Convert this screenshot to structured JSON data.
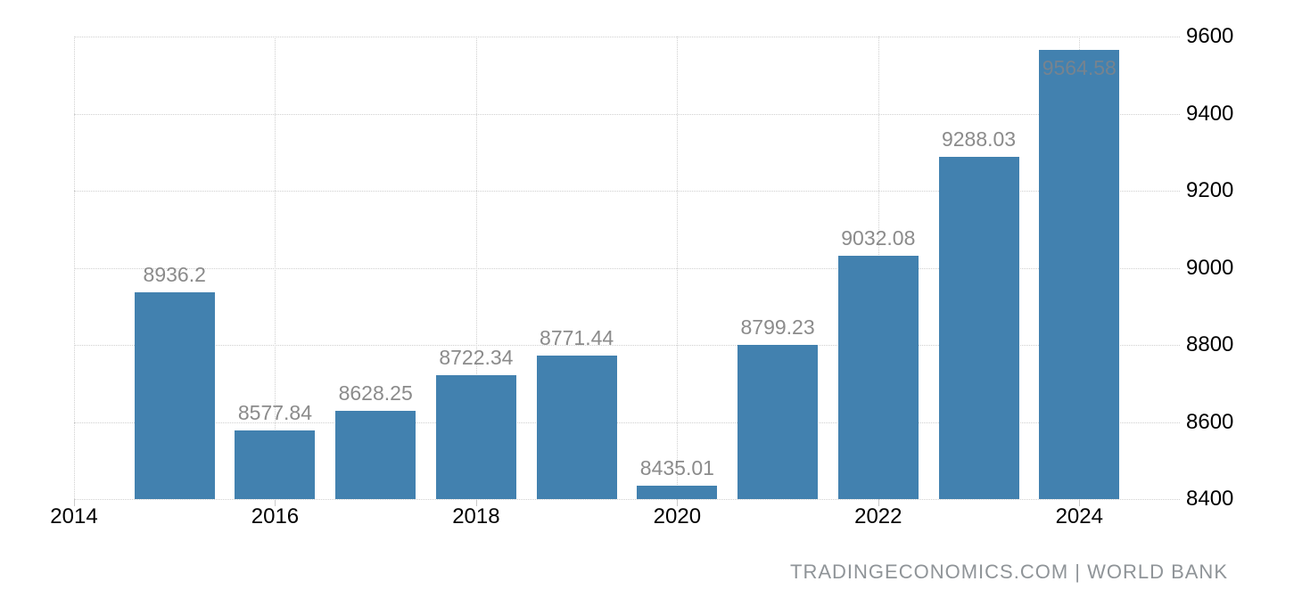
{
  "chart_data": {
    "type": "bar",
    "title": "",
    "xlabel": "",
    "ylabel": "",
    "categories": [
      2015,
      2016,
      2017,
      2018,
      2019,
      2020,
      2021,
      2022,
      2023,
      2024
    ],
    "values": [
      8936.2,
      8577.84,
      8628.25,
      8722.34,
      8771.44,
      8435.01,
      8799.23,
      9032.08,
      9288.03,
      9564.58
    ],
    "bar_labels": [
      "8936.2",
      "8577.84",
      "8628.25",
      "8722.34",
      "8771.44",
      "8435.01",
      "8799.23",
      "9032.08",
      "9288.03",
      "9564.58"
    ],
    "xlim": [
      2014,
      2025
    ],
    "ylim": [
      8400,
      9600
    ],
    "xticks": [
      2014,
      2016,
      2018,
      2020,
      2022,
      2024
    ],
    "yticks": [
      8400,
      8600,
      8800,
      9000,
      9200,
      9400,
      9600
    ],
    "grid": "dotted horizontal at every ytick and vertical at every xtick, drawn behind bars",
    "legend": "none",
    "colors": {
      "bar": "#4281AF",
      "value_label": "#8B8B8B",
      "value_label_inside": "#76838F",
      "axis_label": "#000000",
      "gridline": "#D0D0D0",
      "tick_mark": "#C9C9C9",
      "background": "#FFFFFF"
    }
  },
  "footer": {
    "credit": "TRADINGECONOMICS.COM | WORLD BANK",
    "color": "#8F9498"
  }
}
